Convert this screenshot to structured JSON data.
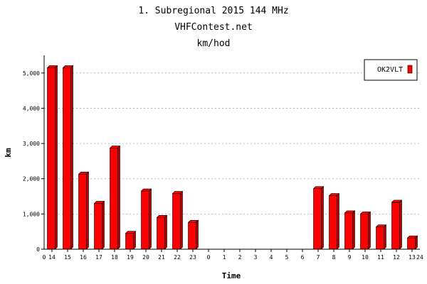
{
  "header": {
    "line1": "1. Subregional 2015 144 MHz",
    "line2": "VHFContest.net",
    "line3": "km/hod"
  },
  "chart_data": {
    "type": "bar",
    "title": "1. Subregional 2015 144 MHz",
    "subtitle": "VHFContest.net",
    "xlabel": "Time",
    "ylabel": "km",
    "ylim": [
      0,
      5500
    ],
    "yticks": [
      0,
      1000,
      2000,
      3000,
      4000,
      5000
    ],
    "ytick_labels": [
      "0",
      "1,000",
      "2,000",
      "3,000",
      "4,000",
      "5,000"
    ],
    "xaxis_start_label": "0",
    "xaxis_end_label": "24",
    "grid": true,
    "legend_position": "top-right",
    "bar_color": "#ff0000",
    "categories": [
      "14",
      "15",
      "16",
      "17",
      "18",
      "19",
      "20",
      "21",
      "22",
      "23",
      "0",
      "1",
      "2",
      "3",
      "4",
      "5",
      "6",
      "7",
      "8",
      "9",
      "10",
      "11",
      "12",
      "13"
    ],
    "series": [
      {
        "name": "OK2VLT",
        "values": [
          5150,
          5150,
          2130,
          1300,
          2870,
          450,
          1650,
          900,
          1580,
          760,
          0,
          0,
          0,
          0,
          0,
          0,
          0,
          1720,
          1520,
          1030,
          1000,
          630,
          1330,
          320
        ]
      }
    ]
  }
}
